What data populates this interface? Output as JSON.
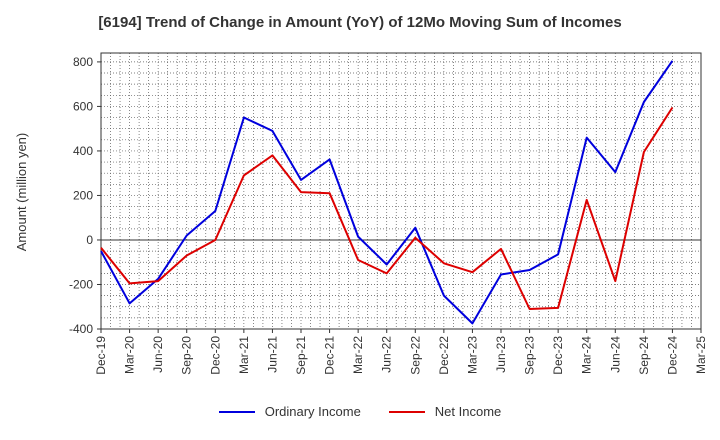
{
  "chart_data": {
    "type": "line",
    "title": "[6194]  Trend of Change in Amount (YoY) of 12Mo Moving Sum of Incomes",
    "xlabel": "",
    "ylabel": "Amount (million yen)",
    "ylim": [
      -400,
      840
    ],
    "yticks": [
      -400,
      -200,
      0,
      200,
      400,
      600,
      800
    ],
    "grid": true,
    "legend_position": "bottom",
    "categories": [
      "Dec-19",
      "Mar-20",
      "Jun-20",
      "Sep-20",
      "Dec-20",
      "Mar-21",
      "Jun-21",
      "Sep-21",
      "Dec-21",
      "Mar-22",
      "Jun-22",
      "Sep-22",
      "Dec-22",
      "Mar-23",
      "Jun-23",
      "Sep-23",
      "Dec-23",
      "Mar-24",
      "Jun-24",
      "Sep-24",
      "Dec-24",
      "Mar-25"
    ],
    "series": [
      {
        "name": "Ordinary Income",
        "color": "#0000dd",
        "values": [
          -50,
          -285,
          -175,
          20,
          130,
          550,
          490,
          270,
          362,
          15,
          -110,
          55,
          -250,
          -375,
          -155,
          -135,
          -65,
          460,
          305,
          620,
          805,
          null
        ]
      },
      {
        "name": "Net Income",
        "color": "#dd0000",
        "values": [
          -35,
          -195,
          -185,
          -70,
          0,
          290,
          380,
          215,
          210,
          -90,
          -150,
          10,
          -105,
          -145,
          -40,
          -310,
          -305,
          180,
          -185,
          395,
          595,
          null
        ]
      }
    ]
  }
}
